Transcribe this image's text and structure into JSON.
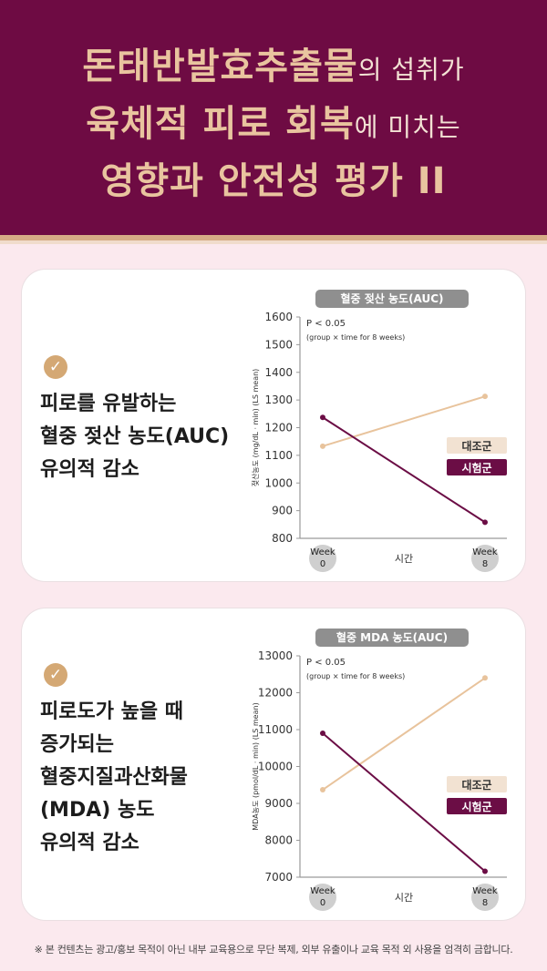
{
  "header": {
    "line1_em": "돈태반발효추출물",
    "line1_rest": "의 섭취가",
    "line2_em": "육체적 피로 회복",
    "line2_rest": "에 미치는",
    "line3": "영향과 안전성 평가 II"
  },
  "colors": {
    "header_bg": "#6e0b43",
    "title_gold": "#e9c49f",
    "control": "#e8c39c",
    "experimental": "#6b0d45",
    "page_bg": "#fbe9ee"
  },
  "cards": [
    {
      "check_icon": "check-circle-icon",
      "description_lines": [
        "피로를 유발하는",
        "혈중 젖산 농도(AUC)",
        "유의적 감소"
      ]
    },
    {
      "check_icon": "check-circle-icon",
      "description_lines": [
        "피로도가 높을 때",
        "증가되는",
        "혈중지질과산화물",
        "(MDA) 농도",
        "유의적 감소"
      ]
    }
  ],
  "chart_data": [
    {
      "type": "line",
      "title": "혈중 젖산 농도(AUC)",
      "ylabel": "젖산농도 (mg/dL · min) (LS mean)",
      "xlabel": "시간",
      "categories": [
        "Week 0",
        "Week 8"
      ],
      "category_lines": [
        [
          "Week",
          "0"
        ],
        [
          "Week",
          "8"
        ]
      ],
      "ylim": [
        800,
        1600
      ],
      "yticks": [
        "1600",
        "1500",
        "1400",
        "1300",
        "1200",
        "1100",
        "1000",
        "900",
        "800"
      ],
      "annotation": [
        "P < 0.05",
        "(group × time for 8 weeks)"
      ],
      "legend_position": "right",
      "series": [
        {
          "name": "대조군",
          "values": [
            1133,
            1313
          ],
          "color": "#e8c39c"
        },
        {
          "name": "시험군",
          "values": [
            1237,
            858
          ],
          "color": "#6b0d45"
        }
      ]
    },
    {
      "type": "line",
      "title": "혈중 MDA 농도(AUC)",
      "ylabel": "MDA농도 (pmol/dL · min) (LS mean)",
      "xlabel": "시간",
      "categories": [
        "Week 0",
        "Week 8"
      ],
      "category_lines": [
        [
          "Week",
          "0"
        ],
        [
          "Week",
          "8"
        ]
      ],
      "ylim": [
        7000,
        13000
      ],
      "yticks": [
        "13000",
        "12000",
        "11000",
        "10000",
        "9000",
        "8000",
        "7000"
      ],
      "annotation": [
        "P < 0.05",
        "(group × time for 8 weeks)"
      ],
      "legend_position": "right",
      "series": [
        {
          "name": "대조군",
          "values": [
            9370,
            12400
          ],
          "color": "#e8c39c"
        },
        {
          "name": "시험군",
          "values": [
            10900,
            7160
          ],
          "color": "#6b0d45"
        }
      ]
    }
  ],
  "footer": "※ 본 컨텐츠는 광고/홍보 목적이 아닌 내부 교육용으로 무단 복제, 외부 유출이나 교육 목적 외 사용을 엄격히 금합니다."
}
